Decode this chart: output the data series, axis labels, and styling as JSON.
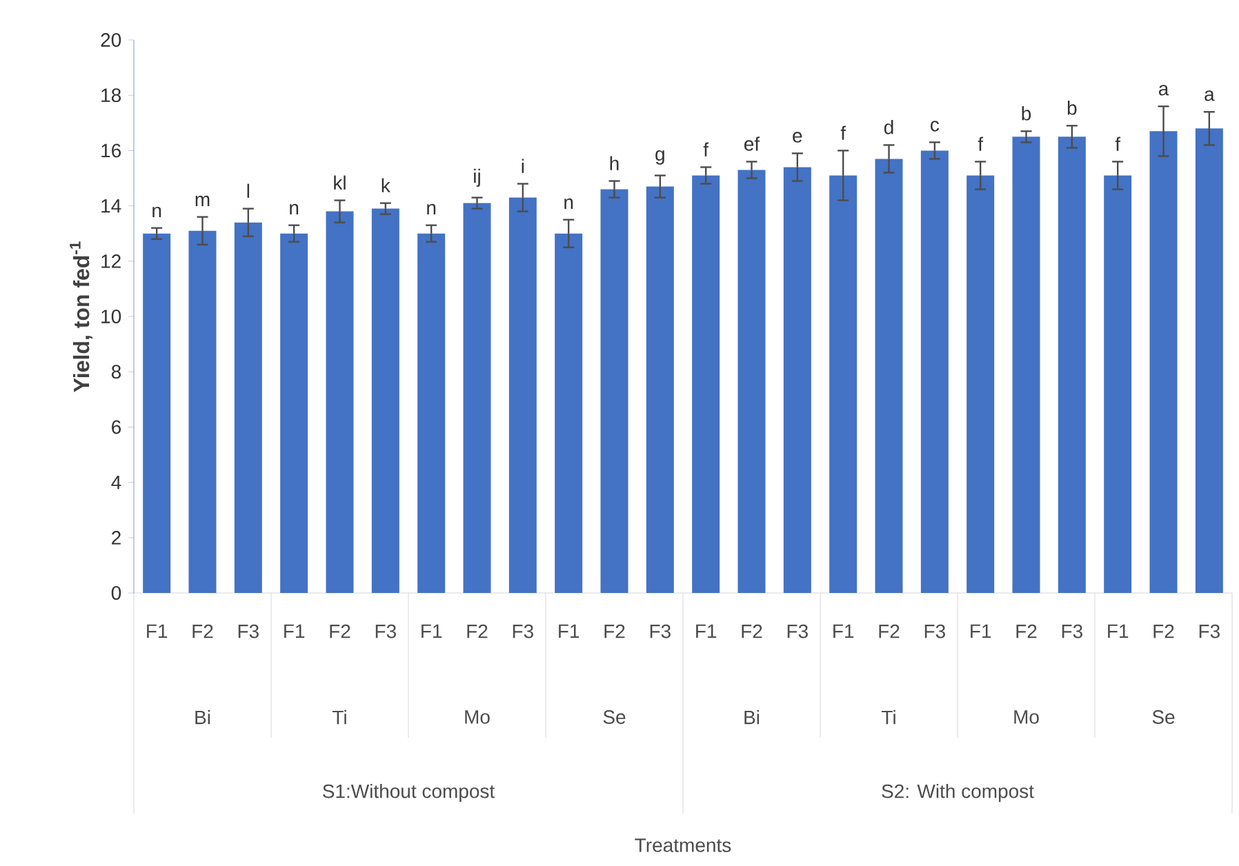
{
  "chart_data": {
    "type": "bar",
    "ylabel": "Yield, ton fed$^{-1}$",
    "categories": [
      "F1",
      "F2",
      "F3",
      "F1",
      "F2",
      "F3",
      "F1",
      "F2",
      "F3",
      "F1",
      "F2",
      "F3",
      "F1",
      "F2",
      "F3",
      "F1",
      "F2",
      "F3",
      "F1",
      "F2",
      "F3",
      "F1",
      "F2",
      "F3"
    ],
    "values": [
      13.0,
      13.1,
      13.4,
      13.0,
      13.8,
      13.9,
      13.0,
      14.1,
      14.3,
      13.0,
      14.6,
      14.7,
      15.1,
      15.3,
      15.4,
      15.1,
      15.7,
      16.0,
      15.1,
      16.5,
      16.5,
      15.1,
      16.7,
      16.8
    ],
    "errors": [
      0.2,
      0.5,
      0.5,
      0.3,
      0.4,
      0.2,
      0.3,
      0.2,
      0.5,
      0.5,
      0.3,
      0.4,
      0.3,
      0.3,
      0.5,
      0.9,
      0.5,
      0.3,
      0.5,
      0.2,
      0.4,
      0.5,
      0.9,
      0.6
    ],
    "value_labels": [
      "n",
      "m",
      "l",
      "n",
      "kl",
      "k",
      "n",
      "ij",
      "i",
      "n",
      "h",
      "g",
      "f",
      "ef",
      "e",
      "f",
      "d",
      "c",
      "f",
      "b",
      "b",
      "f",
      "a",
      "a"
    ],
    "color": "#4472c4",
    "ylim": [
      0,
      20
    ],
    "yticks": [
      0,
      2,
      4,
      6,
      8,
      10,
      12,
      14,
      16,
      18,
      20
    ],
    "annotations": [
      "Bi",
      "Ti",
      "Mo",
      "Se",
      "Bi",
      "Ti",
      "Mo",
      "Se",
      "S1:Without compost",
      "S2: With compost",
      "Treatments"
    ]
  }
}
